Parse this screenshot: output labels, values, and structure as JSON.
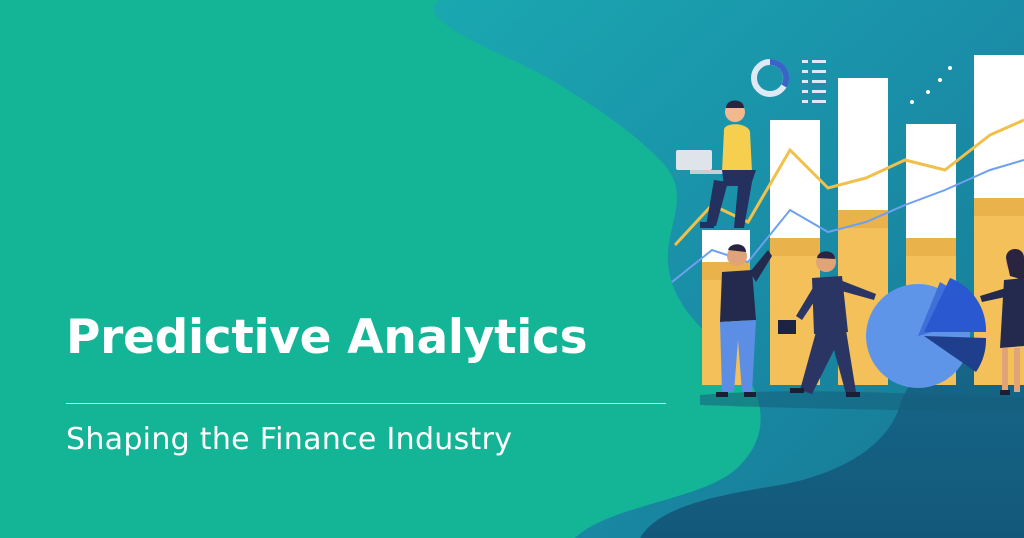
{
  "banner": {
    "title": "Predictive Analytics",
    "subtitle": "Shaping the Finance Industry"
  },
  "colors": {
    "background_green": "#14b497",
    "blob_blue": "#1d8fa6",
    "deep_blue": "#16607e",
    "bar_white": "#ffffff",
    "bar_gold": "#f3c05a",
    "trend_line": "#f0c04a",
    "pie_light": "#5f95e8",
    "pie_dark": "#1f3f8c"
  },
  "illustration": {
    "icons": [
      "donut-chart-icon",
      "list-lines-icon",
      "sparkle-dots-icon",
      "laptop-icon",
      "briefcase-icon",
      "pie-chart-icon"
    ],
    "people": [
      "person-sitting-with-laptop",
      "person-raising-arm",
      "businessman-with-briefcase",
      "woman-presenting"
    ]
  }
}
